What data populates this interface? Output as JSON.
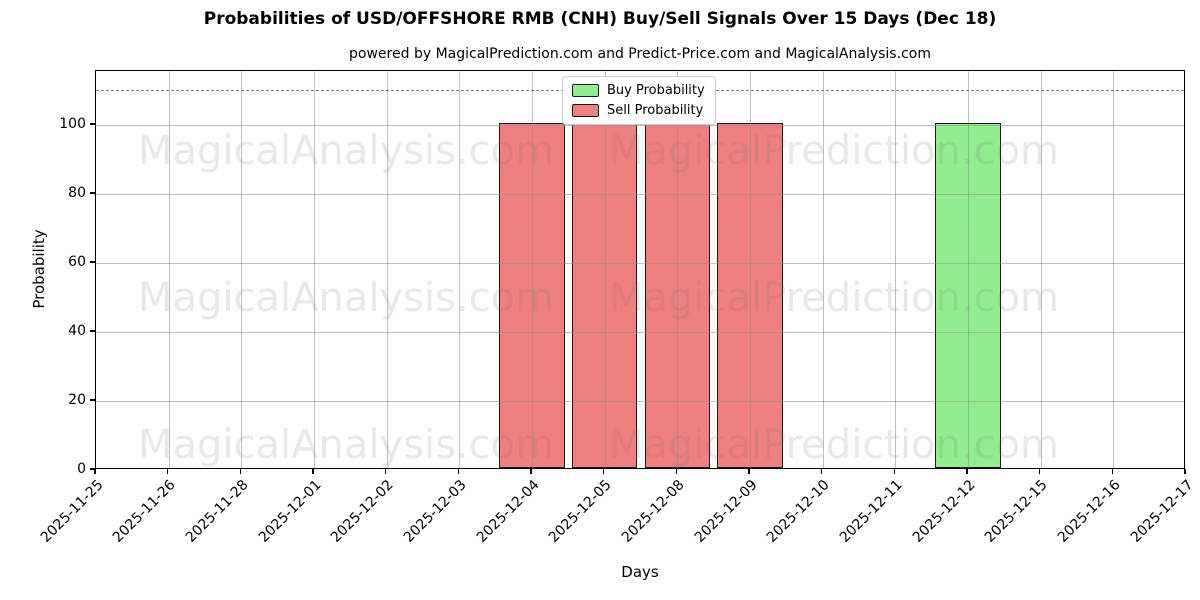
{
  "title": "Probabilities of USD/OFFSHORE RMB (CNH) Buy/Sell Signals Over 15 Days (Dec 18)",
  "subtitle": "powered by MagicalPrediction.com and Predict-Price.com and MagicalAnalysis.com",
  "watermarks": [
    "MagicalAnalysis.com",
    "MagicalPrediction.com"
  ],
  "colors": {
    "buy": "#90ee90",
    "sell": "#f08080",
    "bar_edge": "#1a1a1a",
    "grid": "#8c8c8c",
    "dashed_line": "#7f7f7f"
  },
  "chart_data": {
    "type": "bar",
    "title": "Probabilities of USD/OFFSHORE RMB (CNH) Buy/Sell Signals Over 15 Days (Dec 18)",
    "subtitle": "powered by MagicalPrediction.com and Predict-Price.com and MagicalAnalysis.com",
    "xlabel": "Days",
    "ylabel": "Probability",
    "categories": [
      "2025-11-25",
      "2025-11-26",
      "2025-11-28",
      "2025-12-01",
      "2025-12-02",
      "2025-12-03",
      "2025-12-04",
      "2025-12-05",
      "2025-12-08",
      "2025-12-09",
      "2025-12-10",
      "2025-12-11",
      "2025-12-12",
      "2025-12-15",
      "2025-12-16",
      "2025-12-17"
    ],
    "series": [
      {
        "name": "Buy Probability",
        "color": "#90ee90",
        "values": [
          0,
          0,
          0,
          0,
          0,
          0,
          0,
          0,
          0,
          0,
          0,
          0,
          100,
          0,
          0,
          0
        ]
      },
      {
        "name": "Sell Probability",
        "color": "#f08080",
        "values": [
          0,
          0,
          0,
          0,
          0,
          0,
          100,
          100,
          100,
          100,
          0,
          0,
          0,
          0,
          0,
          0
        ]
      }
    ],
    "yticks": [
      0,
      20,
      40,
      60,
      80,
      100
    ],
    "ylim": [
      0,
      115.6
    ],
    "dashed_line_y": 110,
    "grid": true,
    "legend_position": "top-center"
  }
}
